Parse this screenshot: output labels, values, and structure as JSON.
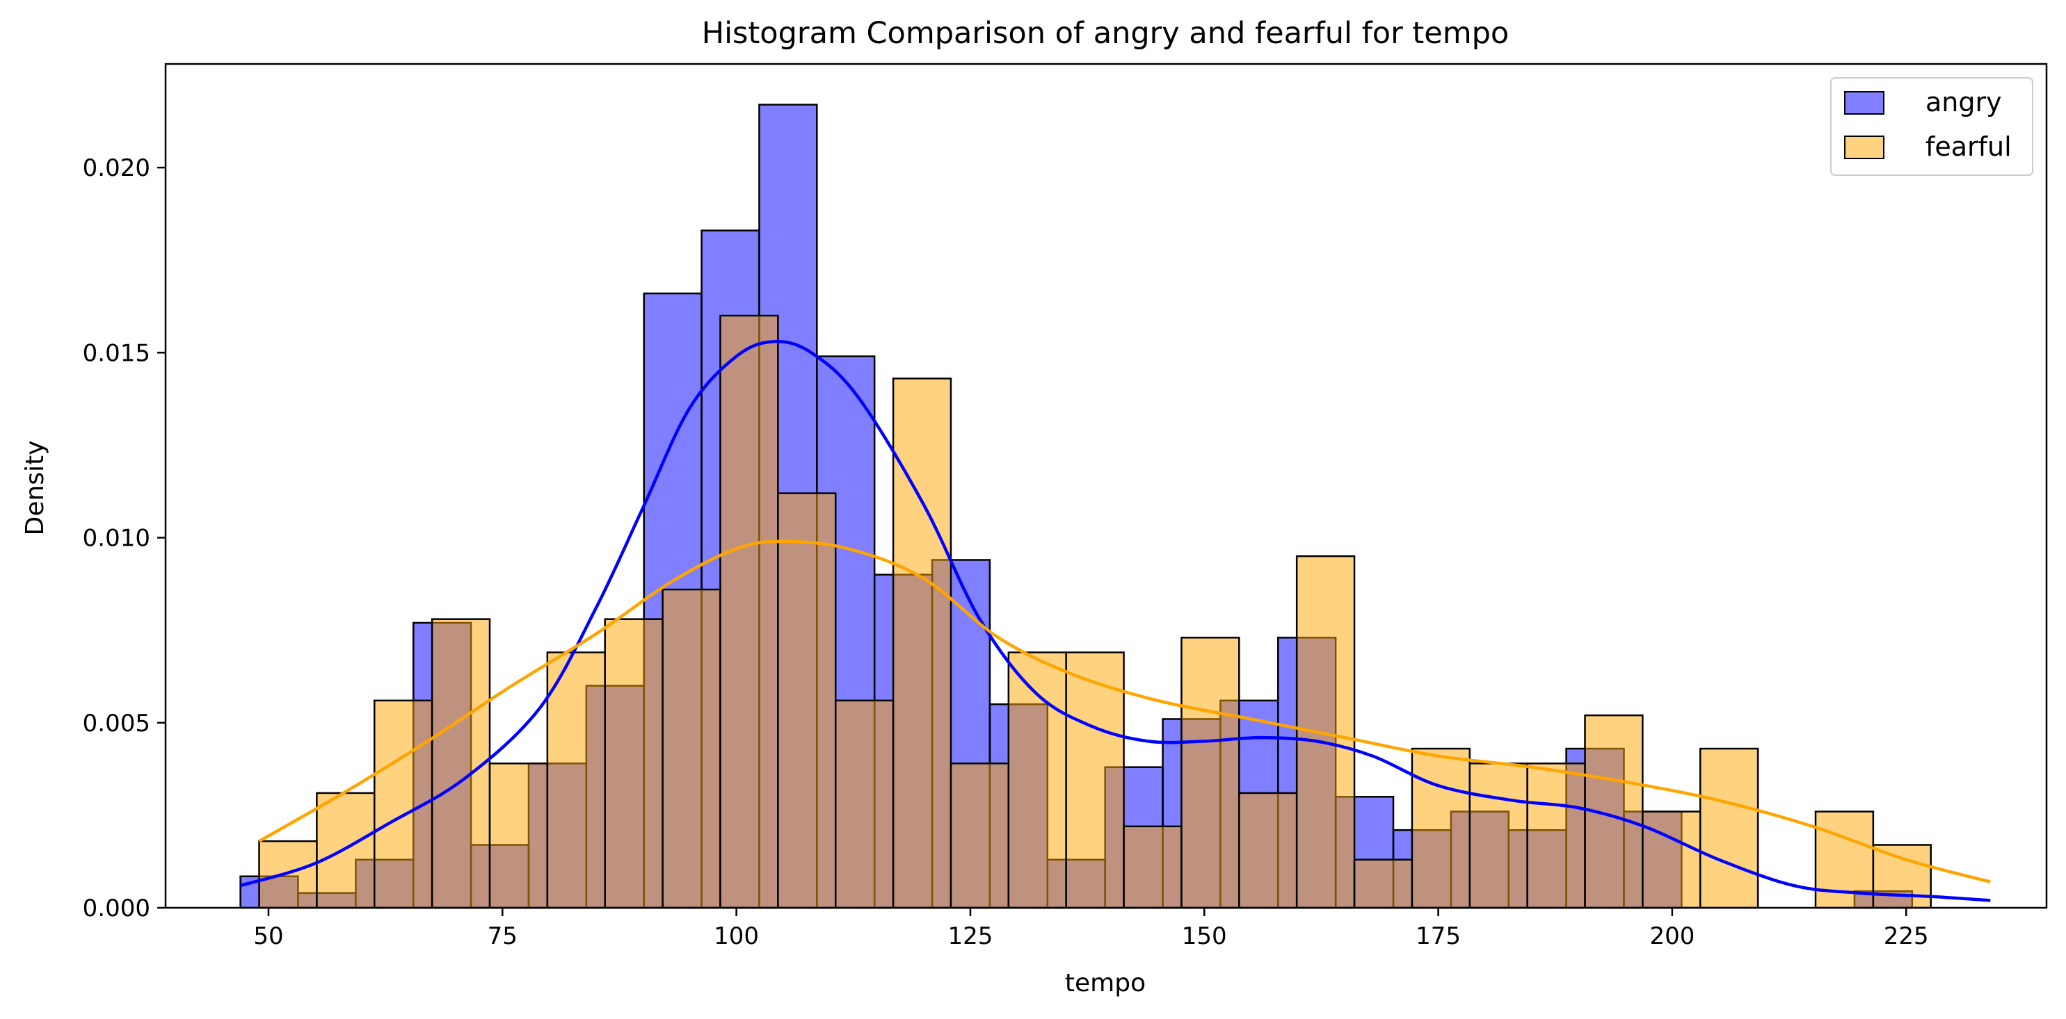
{
  "chart_data": {
    "type": "bar",
    "title": "Histogram Comparison of angry and fearful for tempo",
    "xlabel": "tempo",
    "ylabel": "Density",
    "xlim": [
      39,
      240
    ],
    "ylim": [
      0,
      0.0228
    ],
    "xticks": [
      50,
      75,
      100,
      125,
      150,
      175,
      200,
      225
    ],
    "yticks": [
      0.0,
      0.005,
      0.01,
      0.015,
      0.02
    ],
    "ytick_labels": [
      "0.000",
      "0.005",
      "0.010",
      "0.015",
      "0.020"
    ],
    "grid": false,
    "legend_position": "top-right",
    "series": [
      {
        "name": "angry",
        "kind": "histogram",
        "bin_start": 47.0,
        "bin_width": 6.16,
        "fill": "#0000ff",
        "fill_opacity": 0.5,
        "edge": "#000000",
        "line_color": "#0000ff",
        "values": [
          0.00085,
          0.0004,
          0.0013,
          0.0077,
          0.0017,
          0.0039,
          0.006,
          0.0166,
          0.0183,
          0.0217,
          0.0149,
          0.009,
          0.0094,
          0.0055,
          0.0013,
          0.0038,
          0.0051,
          0.0056,
          0.0073,
          0.003,
          0.0021,
          0.0026,
          0.0021,
          0.0043,
          0.0026,
          0.0,
          0.0,
          0.0,
          0.00045
        ]
      },
      {
        "name": "fearful",
        "kind": "histogram",
        "bin_start": 49.0,
        "bin_width": 6.16,
        "fill": "#ffa500",
        "fill_opacity": 0.5,
        "edge": "#000000",
        "line_color": "#ffa500",
        "values": [
          0.0018,
          0.0031,
          0.0056,
          0.0078,
          0.0039,
          0.0069,
          0.0078,
          0.0086,
          0.016,
          0.0112,
          0.0056,
          0.0143,
          0.0039,
          0.0069,
          0.0069,
          0.0022,
          0.0073,
          0.0031,
          0.0095,
          0.0013,
          0.0043,
          0.0039,
          0.0039,
          0.0052,
          0.0026,
          0.0043,
          0.0,
          0.0026,
          0.0017
        ]
      }
    ],
    "kde": [
      {
        "name": "angry",
        "color": "#0000ff",
        "x": [
          47,
          55,
          63,
          71,
          79,
          85,
          90,
          95,
          100,
          104,
          108,
          113,
          120,
          126,
          132,
          138,
          144,
          150,
          156,
          162,
          168,
          175,
          183,
          190,
          197,
          205,
          213,
          220,
          228,
          234
        ],
        "y": [
          0.0006,
          0.0012,
          0.0023,
          0.0035,
          0.0054,
          0.0081,
          0.0108,
          0.0135,
          0.0149,
          0.0153,
          0.015,
          0.0138,
          0.0109,
          0.0078,
          0.0058,
          0.0049,
          0.0045,
          0.0045,
          0.0046,
          0.0045,
          0.0041,
          0.0033,
          0.0029,
          0.0027,
          0.0022,
          0.0013,
          0.0006,
          0.0004,
          0.0003,
          0.0002
        ]
      },
      {
        "name": "fearful",
        "color": "#ffa500",
        "x": [
          49,
          58,
          67,
          76,
          85,
          93,
          100,
          105,
          112,
          120,
          128,
          136,
          145,
          155,
          165,
          175,
          185,
          195,
          205,
          215,
          225,
          234
        ],
        "y": [
          0.0018,
          0.0031,
          0.0045,
          0.006,
          0.0074,
          0.0088,
          0.0097,
          0.0099,
          0.0097,
          0.0089,
          0.0073,
          0.0063,
          0.0056,
          0.0051,
          0.0046,
          0.0041,
          0.0038,
          0.0034,
          0.0029,
          0.0022,
          0.0013,
          0.0007
        ]
      }
    ]
  }
}
